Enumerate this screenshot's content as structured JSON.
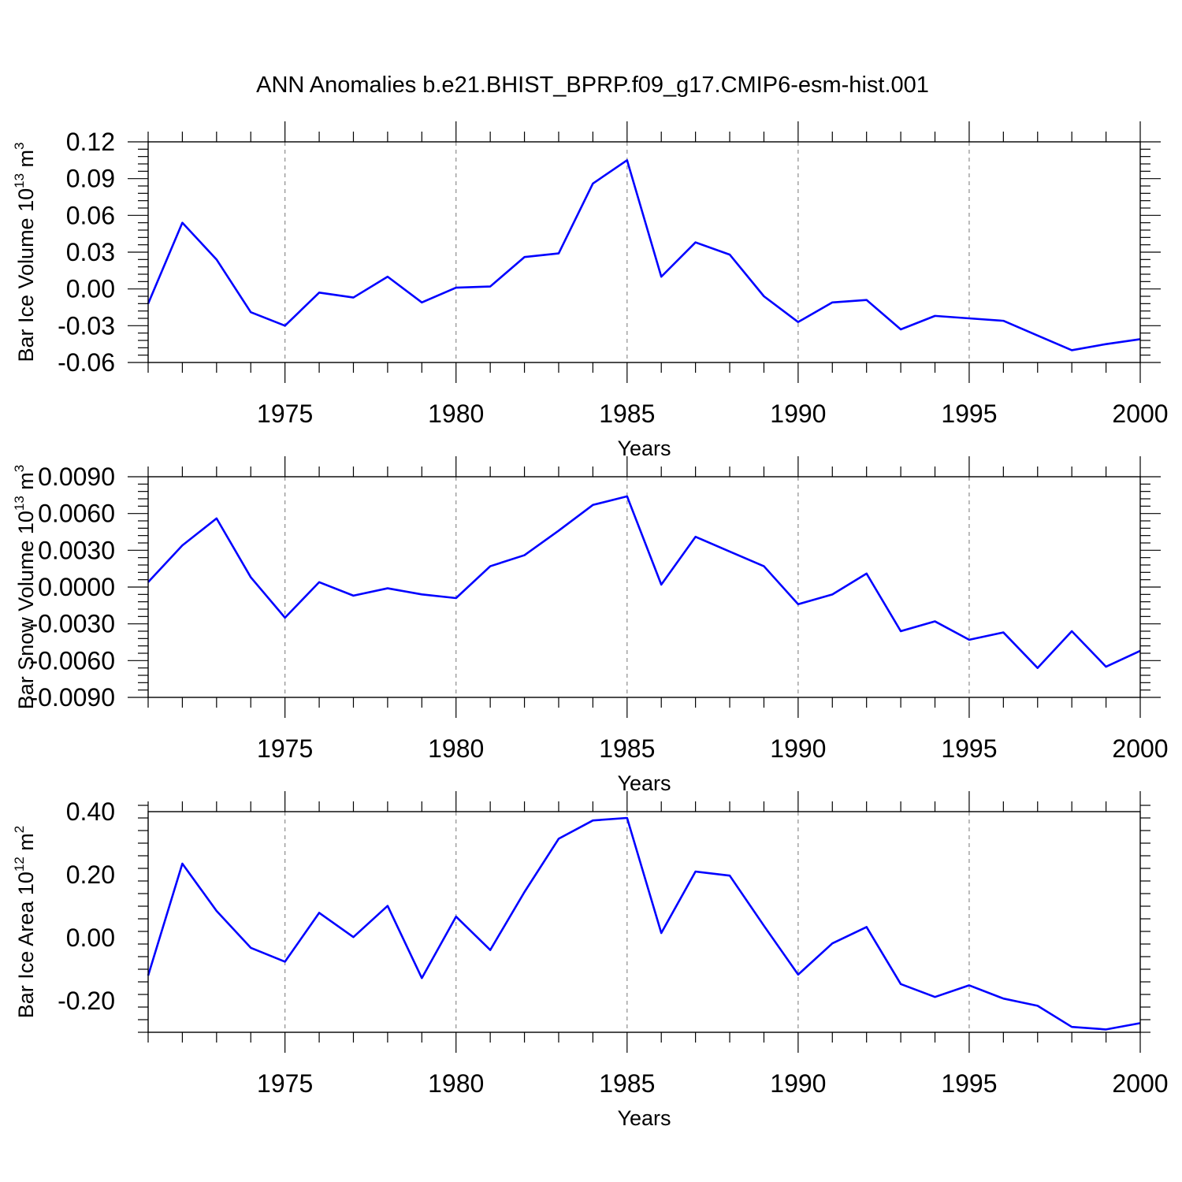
{
  "figure": {
    "title": "ANN Anomalies b.e21.BHIST_BPRP.f09_g17.CMIP6-esm-hist.001",
    "line_color": "#0000ff",
    "grid_color": "#8c8c8c",
    "axis_color": "#000000"
  },
  "chart_data": [
    {
      "type": "line",
      "title": "",
      "xlabel": "Years",
      "ylabel": "Bar Ice Volume 10",
      "ylabel_exp": "13",
      "ylabel_unit": " m",
      "ylabel_unit_exp": "3",
      "xlim": [
        1971,
        2000
      ],
      "ylim": [
        -0.06,
        0.12
      ],
      "x_ticks": [
        1975,
        1980,
        1985,
        1990,
        1995,
        2000
      ],
      "x_tick_labels": [
        "1975",
        "1980",
        "1985",
        "1990",
        "1995",
        "2000"
      ],
      "y_ticks": [
        -0.06,
        -0.03,
        0.0,
        0.03,
        0.06,
        0.09,
        0.12
      ],
      "y_tick_labels": [
        "-0.06",
        "-0.03",
        "0.00",
        "0.03",
        "0.06",
        "0.09",
        "0.12"
      ],
      "grid": "vertical dashed at major x ticks",
      "x": [
        1971,
        1972,
        1973,
        1974,
        1975,
        1976,
        1977,
        1978,
        1979,
        1980,
        1981,
        1982,
        1983,
        1984,
        1985,
        1986,
        1987,
        1988,
        1989,
        1990,
        1991,
        1992,
        1993,
        1994,
        1995,
        1996,
        1997,
        1998,
        1999,
        2000
      ],
      "series": [
        {
          "values": [
            -0.012,
            0.054,
            0.024,
            -0.019,
            -0.03,
            -0.003,
            -0.007,
            0.01,
            -0.011,
            0.001,
            0.002,
            0.026,
            0.029,
            0.086,
            0.105,
            0.01,
            0.038,
            0.028,
            -0.006,
            -0.027,
            -0.011,
            -0.009,
            -0.033,
            -0.022,
            -0.024,
            -0.026,
            -0.038,
            -0.05,
            -0.045,
            -0.041
          ]
        }
      ]
    },
    {
      "type": "line",
      "title": "",
      "xlabel": "Years",
      "ylabel": "Bar Snow Volume 10",
      "ylabel_exp": "13",
      "ylabel_unit": " m",
      "ylabel_unit_exp": "3",
      "xlim": [
        1971,
        2000
      ],
      "ylim": [
        -0.009,
        0.009
      ],
      "x_ticks": [
        1975,
        1980,
        1985,
        1990,
        1995,
        2000
      ],
      "x_tick_labels": [
        "1975",
        "1980",
        "1985",
        "1990",
        "1995",
        "2000"
      ],
      "y_ticks": [
        -0.009,
        -0.006,
        -0.003,
        0.0,
        0.003,
        0.006,
        0.009
      ],
      "y_tick_labels": [
        "-0.0090",
        "-0.0060",
        "-0.0030",
        "0.0000",
        "0.0030",
        "0.0060",
        "0.0090"
      ],
      "grid": "vertical dashed at major x ticks",
      "x": [
        1971,
        1972,
        1973,
        1974,
        1975,
        1976,
        1977,
        1978,
        1979,
        1980,
        1981,
        1982,
        1983,
        1984,
        1985,
        1986,
        1987,
        1988,
        1989,
        1990,
        1991,
        1992,
        1993,
        1994,
        1995,
        1996,
        1997,
        1998,
        1999,
        2000
      ],
      "series": [
        {
          "values": [
            0.0004,
            0.0034,
            0.0056,
            0.0008,
            -0.0025,
            0.0004,
            -0.0007,
            -0.0001,
            -0.0006,
            -0.0009,
            0.0017,
            0.0026,
            0.0046,
            0.0067,
            0.0074,
            0.0002,
            0.0041,
            0.0029,
            0.0017,
            -0.0014,
            -0.0006,
            0.0011,
            -0.0036,
            -0.0028,
            -0.0043,
            -0.0037,
            -0.0066,
            -0.0036,
            -0.0065,
            -0.0052
          ]
        }
      ]
    },
    {
      "type": "line",
      "title": "",
      "xlabel": "Years",
      "ylabel": "Bar Ice Area 10",
      "ylabel_exp": "12",
      "ylabel_unit": " m",
      "ylabel_unit_exp": "2",
      "xlim": [
        1971,
        2000
      ],
      "ylim": [
        -0.3,
        0.4
      ],
      "x_ticks": [
        1975,
        1980,
        1985,
        1990,
        1995,
        2000
      ],
      "x_tick_labels": [
        "1975",
        "1980",
        "1985",
        "1990",
        "1995",
        "2000"
      ],
      "y_ticks": [
        -0.2,
        0.0,
        0.2,
        0.4
      ],
      "y_tick_labels": [
        "-0.20",
        "0.00",
        "0.20",
        "0.40"
      ],
      "grid": "vertical dashed at major x ticks",
      "x": [
        1971,
        1972,
        1973,
        1974,
        1975,
        1976,
        1977,
        1978,
        1979,
        1980,
        1981,
        1982,
        1983,
        1984,
        1985,
        1986,
        1987,
        1988,
        1989,
        1990,
        1991,
        1992,
        1993,
        1994,
        1995,
        1996,
        1997,
        1998,
        1999,
        2000
      ],
      "series": [
        {
          "values": [
            -0.12,
            0.235,
            0.085,
            -0.032,
            -0.076,
            0.079,
            0.002,
            0.101,
            -0.128,
            0.067,
            -0.039,
            0.145,
            0.314,
            0.372,
            0.38,
            0.015,
            0.21,
            0.197,
            0.038,
            -0.117,
            -0.018,
            0.034,
            -0.147,
            -0.188,
            -0.151,
            -0.193,
            -0.216,
            -0.283,
            -0.291,
            -0.271
          ]
        }
      ]
    }
  ]
}
